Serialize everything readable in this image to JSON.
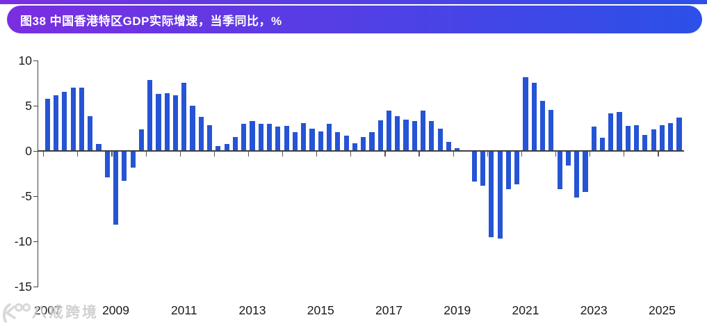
{
  "header": {
    "title": "图38 中国香港特区GDP实际增速，当季同比，%"
  },
  "watermark": {
    "text": "八戒跨境",
    "logo": "bajie-pig-logo"
  },
  "colors": {
    "bar": "#2554d4",
    "axis": "#3f3f3f",
    "label": "#1a1a1a",
    "header_gradient_start": "#7a2ee1",
    "header_gradient_end": "#2b50e8",
    "watermark": "#c9c9c9"
  },
  "chart_data": {
    "type": "bar",
    "title": "图38 中国香港特区GDP实际增速，当季同比，%",
    "xlabel": "",
    "ylabel": "%",
    "ylim": [
      -15,
      10
    ],
    "yticks": [
      10,
      5,
      0,
      -5,
      -10,
      -15
    ],
    "grid": false,
    "legend_position": "none",
    "xtick_labels": [
      "2007",
      "2009",
      "2011",
      "2013",
      "2015",
      "2017",
      "2019",
      "2021",
      "2023",
      "2025"
    ],
    "x": [
      "2007Q1",
      "2007Q2",
      "2007Q3",
      "2007Q4",
      "2008Q1",
      "2008Q2",
      "2008Q3",
      "2008Q4",
      "2009Q1",
      "2009Q2",
      "2009Q3",
      "2009Q4",
      "2010Q1",
      "2010Q2",
      "2010Q3",
      "2010Q4",
      "2011Q1",
      "2011Q2",
      "2011Q3",
      "2011Q4",
      "2012Q1",
      "2012Q2",
      "2012Q3",
      "2012Q4",
      "2013Q1",
      "2013Q2",
      "2013Q3",
      "2013Q4",
      "2014Q1",
      "2014Q2",
      "2014Q3",
      "2014Q4",
      "2015Q1",
      "2015Q2",
      "2015Q3",
      "2015Q4",
      "2016Q1",
      "2016Q2",
      "2016Q3",
      "2016Q4",
      "2017Q1",
      "2017Q2",
      "2017Q3",
      "2017Q4",
      "2018Q1",
      "2018Q2",
      "2018Q3",
      "2018Q4",
      "2019Q1",
      "2019Q2",
      "2019Q3",
      "2019Q4",
      "2020Q1",
      "2020Q2",
      "2020Q3",
      "2020Q4",
      "2021Q1",
      "2021Q2",
      "2021Q3",
      "2021Q4",
      "2022Q1",
      "2022Q2",
      "2022Q3",
      "2022Q4",
      "2023Q1",
      "2023Q2",
      "2023Q3",
      "2023Q4",
      "2024Q1",
      "2024Q2",
      "2024Q3",
      "2024Q4",
      "2025Q1",
      "2025Q2",
      "2025Q3"
    ],
    "values": [
      5.8,
      6.2,
      6.6,
      7.0,
      7.0,
      3.9,
      0.8,
      -2.9,
      -8.1,
      -3.3,
      -1.8,
      2.4,
      7.9,
      6.3,
      6.4,
      6.2,
      7.6,
      5.0,
      3.8,
      2.9,
      0.6,
      0.8,
      1.6,
      3.0,
      3.3,
      3.0,
      3.0,
      2.7,
      2.8,
      2.1,
      3.1,
      2.5,
      2.2,
      3.0,
      2.1,
      1.7,
      0.9,
      1.6,
      2.1,
      3.4,
      4.5,
      3.9,
      3.5,
      3.3,
      4.5,
      3.3,
      2.5,
      1.0,
      0.3,
      0.1,
      -3.4,
      -3.8,
      -9.5,
      -9.7,
      -4.2,
      -3.7,
      8.2,
      7.6,
      5.6,
      4.6,
      -4.2,
      -1.6,
      -5.1,
      -4.5,
      2.7,
      1.5,
      4.2,
      4.3,
      2.8,
      2.9,
      1.8,
      2.4,
      2.9,
      3.1,
      3.7
    ]
  }
}
